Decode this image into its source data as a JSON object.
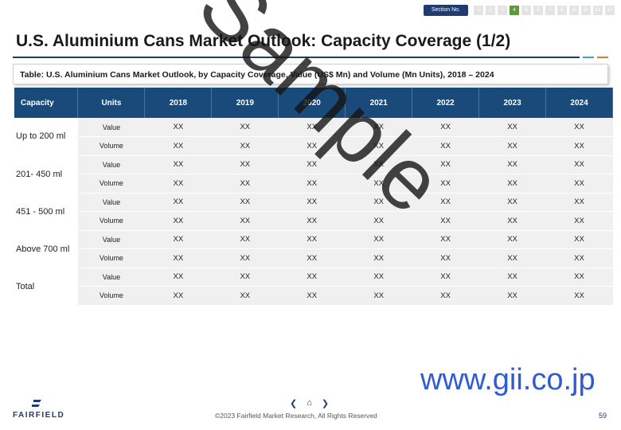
{
  "section": {
    "label": "Section No.",
    "numbers": [
      "1",
      "2",
      "3",
      "4",
      "5",
      "6",
      "7",
      "8",
      "9",
      "10",
      "11",
      "12"
    ],
    "active_index": 3
  },
  "title": "U.S. Aluminium Cans Market Outlook: Capacity Coverage (1/2)",
  "subtitle": "Table: U.S. Aluminium Cans Market Outlook, by Capacity Coverage, Value (US$ Mn) and Volume (Mn Units), 2018 – 2024",
  "table": {
    "headers": [
      "Capacity",
      "Units",
      "2018",
      "2019",
      "2020",
      "2021",
      "2022",
      "2023",
      "2024"
    ],
    "groups": [
      {
        "capacity": "Up to 200 ml",
        "rows": [
          {
            "unit": "Value",
            "cells": [
              "XX",
              "XX",
              "XX",
              "XX",
              "XX",
              "XX",
              "XX"
            ]
          },
          {
            "unit": "Volume",
            "cells": [
              "XX",
              "XX",
              "XX",
              "XX",
              "XX",
              "XX",
              "XX"
            ]
          }
        ]
      },
      {
        "capacity": "201- 450 ml",
        "rows": [
          {
            "unit": "Value",
            "cells": [
              "XX",
              "XX",
              "XX",
              "XX",
              "XX",
              "XX",
              "XX"
            ]
          },
          {
            "unit": "Volume",
            "cells": [
              "XX",
              "XX",
              "XX",
              "XX",
              "XX",
              "XX",
              "XX"
            ]
          }
        ]
      },
      {
        "capacity": "451 - 500 ml",
        "rows": [
          {
            "unit": "Value",
            "cells": [
              "XX",
              "XX",
              "XX",
              "XX",
              "XX",
              "XX",
              "XX"
            ]
          },
          {
            "unit": "Volume",
            "cells": [
              "XX",
              "XX",
              "XX",
              "XX",
              "XX",
              "XX",
              "XX"
            ]
          }
        ]
      },
      {
        "capacity": "Above 700 ml",
        "rows": [
          {
            "unit": "Value",
            "cells": [
              "XX",
              "XX",
              "XX",
              "XX",
              "XX",
              "XX",
              "XX"
            ]
          },
          {
            "unit": "Volume",
            "cells": [
              "XX",
              "XX",
              "XX",
              "XX",
              "XX",
              "XX",
              "XX"
            ]
          }
        ]
      },
      {
        "capacity": "Total",
        "rows": [
          {
            "unit": "Value",
            "cells": [
              "XX",
              "XX",
              "XX",
              "XX",
              "XX",
              "XX",
              "XX"
            ]
          },
          {
            "unit": "Volume",
            "cells": [
              "XX",
              "XX",
              "XX",
              "XX",
              "XX",
              "XX",
              "XX"
            ]
          }
        ]
      }
    ]
  },
  "watermark": "Sample",
  "gii": "www.gii.co.jp",
  "logo": "FAIRFIELD",
  "nav": {
    "prev": "❮",
    "home": "⌂",
    "next": "❯"
  },
  "copyright": "©2023 Fairfield Market Research, All Rights Reserved",
  "page_number": "59",
  "colors": {
    "header": "#1a4a7a",
    "accent_green": "#5a9a3c",
    "gii_blue": "#2f5bd6"
  }
}
